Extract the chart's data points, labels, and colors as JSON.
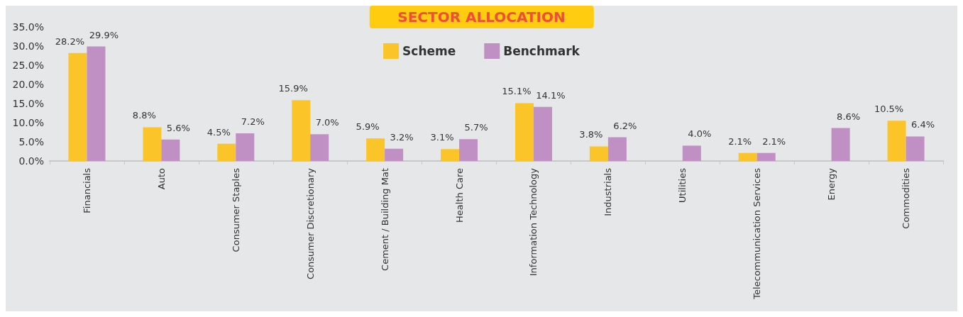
{
  "chart_data": {
    "type": "bar",
    "title": "SECTOR ALLOCATION",
    "categories": [
      "Financials",
      "Auto",
      "Consumer Staples",
      "Consumer Discretionary",
      "Cement / Building Mat",
      "Health Care",
      "Information Technology",
      "Industrials",
      "Utilities",
      "Telecommunication Services",
      "Energy",
      "Commodities"
    ],
    "series": [
      {
        "name": "Scheme",
        "color": "#fbc52a",
        "values": [
          28.2,
          8.8,
          4.5,
          15.9,
          5.9,
          3.1,
          15.1,
          3.8,
          null,
          2.1,
          null,
          10.5
        ],
        "value_labels": [
          "28.2%",
          "8.8%",
          "4.5%",
          "15.9%",
          "5.9%",
          "3.1%",
          "15.1%",
          "3.8%",
          null,
          "2.1%",
          null,
          "10.5%"
        ]
      },
      {
        "name": "Benchmark",
        "color": "#c08fc3",
        "values": [
          29.9,
          5.6,
          7.2,
          7.0,
          3.2,
          5.7,
          14.1,
          6.2,
          4.0,
          2.1,
          8.6,
          6.4
        ],
        "value_labels": [
          "29.9%",
          "5.6%",
          "7.2%",
          "7.0%",
          "3.2%",
          "5.7%",
          "14.1%",
          "6.2%",
          "4.0%",
          "2.1%",
          "8.6%",
          "6.4%"
        ]
      }
    ],
    "ylim": [
      0,
      35
    ],
    "yticks": [
      {
        "value": 0,
        "label": "0.0%"
      },
      {
        "value": 5,
        "label": "5.0%"
      },
      {
        "value": 10,
        "label": "10.0%"
      },
      {
        "value": 15,
        "label": "15.0%"
      },
      {
        "value": 20,
        "label": "20.0%"
      },
      {
        "value": 25,
        "label": "25.0%"
      },
      {
        "value": 30,
        "label": "30.0%"
      },
      {
        "value": 35,
        "label": "35.0%"
      }
    ],
    "grid": false,
    "legend": "top"
  }
}
